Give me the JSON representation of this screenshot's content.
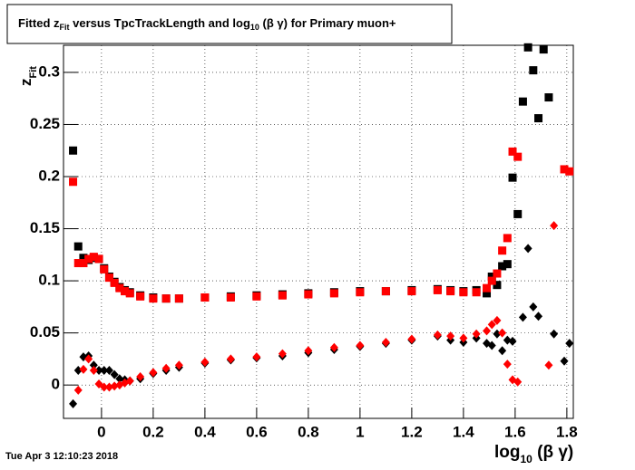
{
  "chart_data": {
    "type": "scatter",
    "title": [
      "Fitted  z",
      "Fit",
      " versus TpcTrackLength and log",
      "10",
      " (β γ) for Primary muon+"
    ],
    "x_label": [
      "log",
      "10",
      " (β γ)"
    ],
    "y_label": [
      "z",
      "Fit"
    ],
    "timestamp": "Tue Apr  3 12:10:23 2018",
    "xlim": [
      -0.147,
      1.825
    ],
    "ylim": [
      -0.032,
      0.326
    ],
    "xticks": [
      0,
      0.2,
      0.4,
      0.6,
      0.8,
      1,
      1.2,
      1.4,
      1.6,
      1.8
    ],
    "yticks": [
      0,
      0.05,
      0.1,
      0.15,
      0.2,
      0.25,
      0.3
    ],
    "grid": true,
    "x": [
      -0.11,
      -0.09,
      -0.07,
      -0.05,
      -0.03,
      -0.01,
      0.01,
      0.03,
      0.05,
      0.07,
      0.09,
      0.11,
      0.15,
      0.2,
      0.25,
      0.3,
      0.4,
      0.5,
      0.6,
      0.7,
      0.8,
      0.9,
      1.0,
      1.1,
      1.2,
      1.3,
      1.35,
      1.4,
      1.45,
      1.49,
      1.51,
      1.53,
      1.55,
      1.57,
      1.59,
      1.61,
      1.63,
      1.65,
      1.67,
      1.69,
      1.71,
      1.73,
      1.75,
      1.79,
      1.81
    ],
    "series": [
      {
        "marker": "square",
        "color": "#000000",
        "values": [
          0.225,
          0.133,
          0.122,
          0.12,
          0.122,
          0.121,
          0.112,
          0.104,
          0.099,
          0.094,
          0.091,
          0.089,
          0.086,
          0.084,
          0.083,
          0.083,
          0.084,
          0.085,
          0.086,
          0.087,
          0.088,
          0.089,
          0.09,
          0.09,
          0.091,
          0.092,
          0.091,
          0.09,
          0.091,
          0.088,
          0.104,
          0.096,
          0.114,
          0.116,
          0.199,
          0.164,
          0.272,
          0.324,
          0.302,
          0.256,
          0.322,
          0.276,
          null,
          null,
          null
        ]
      },
      {
        "marker": "square",
        "color": "#ff0000",
        "values": [
          0.195,
          0.117,
          0.117,
          0.121,
          0.123,
          0.121,
          0.111,
          0.103,
          0.098,
          0.093,
          0.09,
          0.088,
          0.085,
          0.083,
          0.083,
          0.083,
          0.084,
          0.084,
          0.085,
          0.086,
          0.087,
          0.088,
          0.089,
          0.09,
          0.09,
          0.091,
          0.09,
          0.089,
          0.089,
          0.093,
          0.1,
          0.107,
          0.129,
          0.141,
          0.224,
          0.219,
          null,
          null,
          null,
          null,
          null,
          null,
          null,
          0.207,
          0.205
        ]
      },
      {
        "marker": "diamond",
        "color": "#000000",
        "values": [
          -0.018,
          0.014,
          0.027,
          0.028,
          0.019,
          0.014,
          0.014,
          0.014,
          0.01,
          0.006,
          0.005,
          0.004,
          0.006,
          0.011,
          0.014,
          0.017,
          0.021,
          0.024,
          0.026,
          0.028,
          0.031,
          0.034,
          0.037,
          0.04,
          0.043,
          0.047,
          0.043,
          0.041,
          0.045,
          0.04,
          0.038,
          0.049,
          0.033,
          0.043,
          0.042,
          null,
          0.065,
          0.131,
          0.075,
          0.066,
          null,
          null,
          0.049,
          0.023,
          0.04
        ]
      },
      {
        "marker": "diamond",
        "color": "#ff0000",
        "values": [
          null,
          -0.005,
          0.015,
          0.025,
          0.014,
          0.001,
          -0.002,
          -0.002,
          -0.001,
          0.0,
          0.002,
          0.004,
          0.008,
          0.012,
          0.016,
          0.019,
          0.022,
          0.025,
          0.027,
          0.03,
          0.033,
          0.036,
          0.038,
          0.041,
          0.044,
          0.048,
          0.047,
          0.045,
          0.049,
          0.052,
          0.058,
          0.062,
          0.05,
          0.02,
          0.005,
          0.003,
          null,
          null,
          null,
          null,
          null,
          0.019,
          0.153,
          null,
          null
        ]
      }
    ]
  }
}
